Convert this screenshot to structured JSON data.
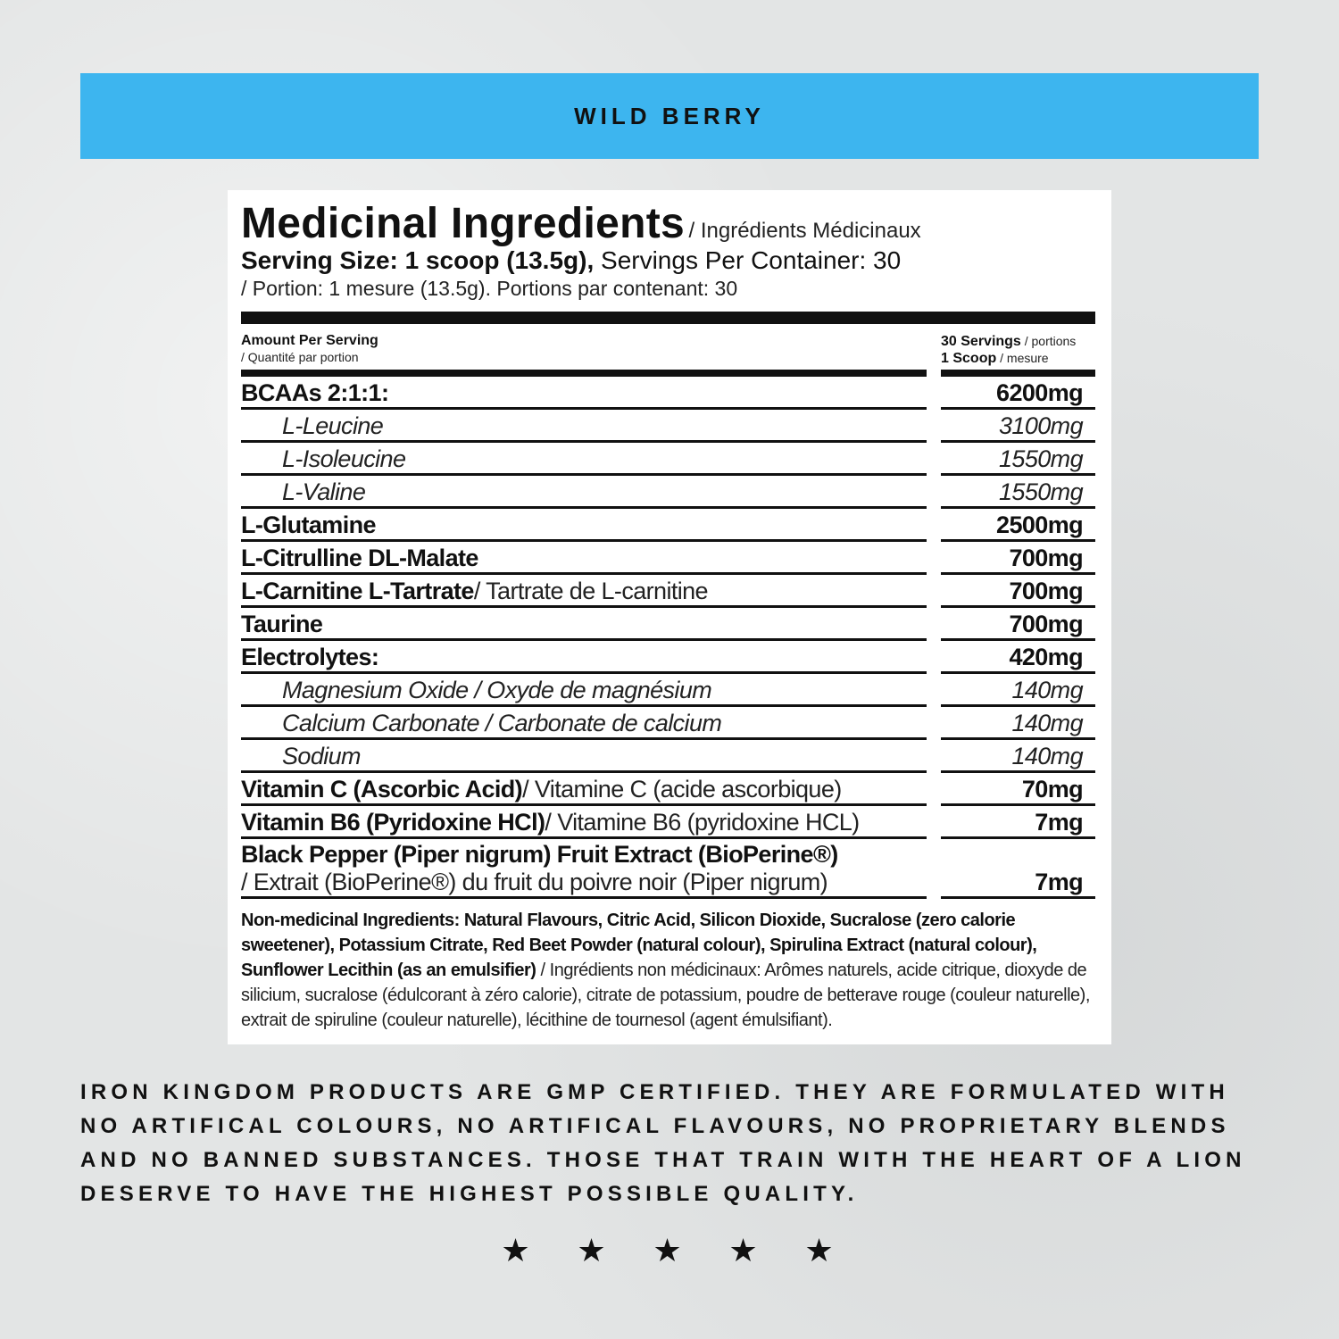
{
  "banner": {
    "flavour": "WILD BERRY",
    "color": "#3db5ef"
  },
  "panel": {
    "title": "Medicinal Ingredients",
    "title_fr": "/ Ingrédients Médicinaux",
    "serving_bold": "Serving Size: 1 scoop (13.5g),",
    "serving_rest": " Servings Per Container: 30",
    "serving_fr": "/ Portion: 1 mesure (13.5g). Portions par contenant: 30",
    "header": {
      "amount": "Amount Per Serving",
      "amount_fr": "/ Quantité par portion",
      "servings": "30 Servings",
      "servings_fr": " / portions",
      "scoop": "1 Scoop",
      "scoop_fr": " / mesure"
    },
    "rows": [
      {
        "name": "BCAAs 2:1:1:",
        "fr": "",
        "value": "6200mg",
        "type": "main"
      },
      {
        "name": "L-Leucine",
        "fr": "",
        "value": "3100mg",
        "type": "sub"
      },
      {
        "name": "L-Isoleucine",
        "fr": "",
        "value": "1550mg",
        "type": "sub"
      },
      {
        "name": "L-Valine",
        "fr": "",
        "value": "1550mg",
        "type": "sub"
      },
      {
        "name": "L-Glutamine",
        "fr": "",
        "value": "2500mg",
        "type": "main"
      },
      {
        "name": "L-Citrulline DL-Malate",
        "fr": "",
        "value": "700mg",
        "type": "main"
      },
      {
        "name": "L-Carnitine L-Tartrate",
        "fr": " / Tartrate de L-carnitine",
        "value": "700mg",
        "type": "main"
      },
      {
        "name": "Taurine",
        "fr": "",
        "value": "700mg",
        "type": "main"
      },
      {
        "name": "Electrolytes:",
        "fr": "",
        "value": "420mg",
        "type": "main"
      },
      {
        "name": "Magnesium Oxide / Oxyde de magnésium",
        "fr": "",
        "value": "140mg",
        "type": "sub"
      },
      {
        "name": "Calcium Carbonate / Carbonate de calcium",
        "fr": "",
        "value": "140mg",
        "type": "sub"
      },
      {
        "name": "Sodium",
        "fr": "",
        "value": "140mg",
        "type": "sub"
      },
      {
        "name": "Vitamin C (Ascorbic Acid)",
        "fr": " / Vitamine C (acide ascorbique)",
        "value": "70mg",
        "type": "main"
      },
      {
        "name": "Vitamin B6 (Pyridoxine HCl)",
        "fr": " / Vitamine B6 (pyridoxine HCL)",
        "value": "7mg",
        "type": "main"
      }
    ],
    "last_row": {
      "name": "Black Pepper (Piper nigrum) Fruit Extract (BioPerine®)",
      "fr": "/ Extrait (BioPerine®) du fruit du poivre noir (Piper nigrum)",
      "value": "7mg"
    },
    "nonmed_bold": "Non-medicinal Ingredients: Natural Flavours, Citric Acid, Silicon Dioxide, Sucralose (zero calorie sweetener), Potassium Citrate, Red Beet Powder (natural colour), Spirulina Extract (natural colour), Sunflower Lecithin (as an emulsifier)",
    "nonmed_fr": " / Ingrédients non médicinaux: Arômes naturels, acide citrique, dioxyde de silicium, sucralose (édulcorant à zéro calorie), citrate de potassium, poudre de betterave rouge (couleur naturelle), extrait de spiruline (couleur naturelle), lécithine de tournesol (agent émulsifiant)."
  },
  "footer": "IRON KINGDOM PRODUCTS ARE GMP CERTIFIED. THEY ARE FORMULATED WITH NO ARTIFICAL COLOURS, NO ARTIFICAL FLAVOURS, NO PROPRIETARY BLENDS AND NO BANNED SUBSTANCES. THOSE THAT TRAIN WITH THE HEART OF A LION DESERVE TO HAVE THE HIGHEST POSSIBLE QUALITY.",
  "stars": {
    "count": 5,
    "icon": "star-icon"
  }
}
